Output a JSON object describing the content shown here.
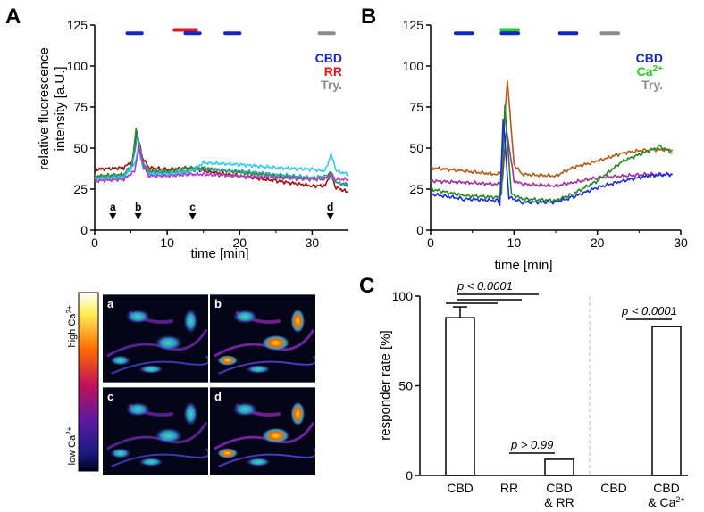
{
  "panels": {
    "a": "A",
    "b": "B",
    "c": "C"
  },
  "colors": {
    "cbd": "#1226c8",
    "rr": "#e0161a",
    "try": "#8c8c8c",
    "ca": "#22cc22",
    "t_red": "#a01010",
    "t_green": "#2e8b2e",
    "t_cyan": "#33ccee",
    "t_magenta": "#b23cc8",
    "t_teal": "#30a0a0",
    "t_blue": "#1a2fd0",
    "t_brown": "#b05a1a",
    "t_purple": "#a0309a",
    "t_dgreen": "#228822"
  },
  "chart_data": [
    {
      "id": "A",
      "type": "line",
      "xlabel": "time [min]",
      "ylabel_lines": [
        "relative fluorescence",
        "intensity [a.U.]"
      ],
      "xlim": [
        0,
        35
      ],
      "ylim": [
        0,
        125
      ],
      "xticks": [
        "0",
        "10",
        "20",
        "30"
      ],
      "xtick_values": [
        0,
        10,
        20,
        30
      ],
      "yticks": [
        "0",
        "25",
        "50",
        "75",
        "100",
        "125"
      ],
      "ytick_values": [
        0,
        25,
        50,
        75,
        100,
        125
      ],
      "legend": [
        {
          "label": "CBD",
          "color": "cbd"
        },
        {
          "label": "RR",
          "color": "rr"
        },
        {
          "label": "Try.",
          "color": "try"
        }
      ],
      "bars": [
        {
          "name": "CBD",
          "color": "cbd",
          "start": 4.5,
          "end": 6.5,
          "y": 120
        },
        {
          "name": "RR",
          "color": "rr",
          "start": 11,
          "end": 14,
          "y": 122
        },
        {
          "name": "CBD",
          "color": "cbd",
          "start": 12.5,
          "end": 14.5,
          "y": 120
        },
        {
          "name": "CBD",
          "color": "cbd",
          "start": 18,
          "end": 20,
          "y": 120
        },
        {
          "name": "Try.",
          "color": "try",
          "start": 31,
          "end": 33,
          "y": 120
        }
      ],
      "markers": [
        {
          "label": "a",
          "x": 2.5
        },
        {
          "label": "b",
          "x": 6
        },
        {
          "label": "c",
          "x": 13.5
        },
        {
          "label": "d",
          "x": 32.5
        }
      ],
      "series": [
        {
          "name": "trace 1",
          "color": "t_red",
          "points": [
            [
              0,
              37
            ],
            [
              4,
              38
            ],
            [
              5.2,
              42
            ],
            [
              5.8,
              60
            ],
            [
              6.6,
              44
            ],
            [
              7.5,
              38
            ],
            [
              10,
              37
            ],
            [
              13,
              38
            ],
            [
              15,
              36
            ],
            [
              20,
              33
            ],
            [
              25,
              30
            ],
            [
              30,
              27
            ],
            [
              31.8,
              27
            ],
            [
              32.5,
              34
            ],
            [
              33.3,
              26
            ],
            [
              35,
              23
            ]
          ]
        },
        {
          "name": "trace 2",
          "color": "t_green",
          "points": [
            [
              0,
              33
            ],
            [
              4,
              34
            ],
            [
              5.2,
              40
            ],
            [
              5.7,
              62
            ],
            [
              6.6,
              40
            ],
            [
              7.5,
              36
            ],
            [
              10,
              36
            ],
            [
              13,
              38
            ],
            [
              15,
              38
            ],
            [
              20,
              35
            ],
            [
              25,
              33
            ],
            [
              30,
              31
            ],
            [
              31.8,
              31
            ],
            [
              32.5,
              36
            ],
            [
              33.3,
              29
            ],
            [
              35,
              27
            ]
          ]
        },
        {
          "name": "trace 3",
          "color": "t_teal",
          "points": [
            [
              0,
              32
            ],
            [
              4,
              33
            ],
            [
              5.3,
              42
            ],
            [
              5.9,
              58
            ],
            [
              6.6,
              42
            ],
            [
              7.5,
              35
            ],
            [
              10,
              35
            ],
            [
              13,
              36
            ],
            [
              15,
              37
            ],
            [
              20,
              36
            ],
            [
              25,
              34
            ],
            [
              30,
              32
            ],
            [
              32,
              33
            ],
            [
              32.5,
              33
            ],
            [
              33.3,
              29
            ],
            [
              35,
              28
            ]
          ]
        },
        {
          "name": "trace 4",
          "color": "t_cyan",
          "points": [
            [
              0,
              31
            ],
            [
              4,
              32
            ],
            [
              5.5,
              40
            ],
            [
              6,
              50
            ],
            [
              6.7,
              38
            ],
            [
              7.5,
              34
            ],
            [
              10,
              34
            ],
            [
              13,
              35
            ],
            [
              15,
              41
            ],
            [
              20,
              40
            ],
            [
              25,
              38
            ],
            [
              30,
              37
            ],
            [
              31.8,
              36
            ],
            [
              32.6,
              46
            ],
            [
              33.4,
              36
            ],
            [
              35,
              34
            ]
          ]
        },
        {
          "name": "trace 5",
          "color": "t_magenta",
          "points": [
            [
              0,
              30
            ],
            [
              4,
              31
            ],
            [
              5.5,
              36
            ],
            [
              6.1,
              50
            ],
            [
              6.8,
              38
            ],
            [
              7.5,
              33
            ],
            [
              10,
              33
            ],
            [
              13,
              34
            ],
            [
              15,
              34
            ],
            [
              20,
              33
            ],
            [
              25,
              32
            ],
            [
              30,
              31
            ],
            [
              31.8,
              31
            ],
            [
              32.5,
              34
            ],
            [
              33.3,
              31
            ],
            [
              35,
              31
            ]
          ]
        }
      ]
    },
    {
      "id": "B",
      "type": "line",
      "xlabel": "time [min]",
      "ylabel_lines": [],
      "xlim": [
        0,
        30
      ],
      "ylim": [
        0,
        125
      ],
      "xticks": [
        "0",
        "10",
        "20",
        "30"
      ],
      "xtick_values": [
        0,
        10,
        20,
        30
      ],
      "yticks": [
        "0",
        "25",
        "50",
        "75",
        "100",
        "125"
      ],
      "ytick_values": [
        0,
        25,
        50,
        75,
        100,
        125
      ],
      "legend": [
        {
          "label": "CBD",
          "color": "cbd"
        },
        {
          "label": "Ca",
          "sup": "2+",
          "color": "ca"
        },
        {
          "label": "Try.",
          "color": "try"
        }
      ],
      "bars": [
        {
          "name": "CBD",
          "color": "cbd",
          "start": 3,
          "end": 5,
          "y": 120
        },
        {
          "name": "Ca2+",
          "color": "ca",
          "start": 8.5,
          "end": 10.5,
          "y": 122
        },
        {
          "name": "CBD",
          "color": "cbd",
          "start": 8.5,
          "end": 10.5,
          "y": 120
        },
        {
          "name": "CBD",
          "color": "cbd",
          "start": 15.5,
          "end": 17.5,
          "y": 120
        },
        {
          "name": "Try.",
          "color": "try",
          "start": 20.5,
          "end": 22.5,
          "y": 120
        }
      ],
      "markers": [],
      "series": [
        {
          "name": "trace 1",
          "color": "t_brown",
          "points": [
            [
              0,
              38
            ],
            [
              4,
              36
            ],
            [
              8,
              34
            ],
            [
              8.5,
              36
            ],
            [
              9.2,
              92
            ],
            [
              10,
              40
            ],
            [
              11,
              34
            ],
            [
              15,
              33
            ],
            [
              17,
              38
            ],
            [
              20,
              42
            ],
            [
              23,
              47
            ],
            [
              26,
              49
            ],
            [
              29,
              49
            ]
          ]
        },
        {
          "name": "trace 2",
          "color": "t_purple",
          "points": [
            [
              0,
              30
            ],
            [
              4,
              29
            ],
            [
              8,
              28
            ],
            [
              8.6,
              30
            ],
            [
              9.1,
              62
            ],
            [
              10,
              30
            ],
            [
              11,
              28
            ],
            [
              15,
              27
            ],
            [
              17,
              29
            ],
            [
              20,
              32
            ],
            [
              23,
              33
            ],
            [
              26,
              34
            ],
            [
              29,
              34
            ]
          ]
        },
        {
          "name": "trace 3",
          "color": "t_dgreen",
          "points": [
            [
              0,
              25
            ],
            [
              4,
              21
            ],
            [
              8,
              20
            ],
            [
              8.5,
              22
            ],
            [
              8.9,
              75
            ],
            [
              9.7,
              22
            ],
            [
              11,
              19
            ],
            [
              15,
              18
            ],
            [
              17,
              22
            ],
            [
              20,
              30
            ],
            [
              23,
              42
            ],
            [
              26,
              48
            ],
            [
              27.5,
              51
            ],
            [
              29,
              47
            ]
          ]
        },
        {
          "name": "trace 4",
          "color": "t_blue",
          "points": [
            [
              0,
              22
            ],
            [
              4,
              19
            ],
            [
              8,
              18
            ],
            [
              8.3,
              16
            ],
            [
              8.7,
              68
            ],
            [
              9.4,
              20
            ],
            [
              11,
              17
            ],
            [
              15,
              17
            ],
            [
              17,
              20
            ],
            [
              20,
              26
            ],
            [
              23,
              30
            ],
            [
              26,
              33
            ],
            [
              29,
              34
            ]
          ]
        }
      ]
    },
    {
      "id": "C",
      "type": "bar",
      "ylabel": "responder rate [%]",
      "ylim": [
        0,
        100
      ],
      "yticks": [
        "0",
        "50",
        "100"
      ],
      "ytick_values": [
        0,
        50,
        100
      ],
      "categories": [
        {
          "label": "CBD",
          "value": 88,
          "error": 6
        },
        {
          "label": "RR",
          "value": 0,
          "error": 0
        },
        {
          "label": "CBD",
          "label2": "& RR",
          "value": 9,
          "error": 0
        },
        {
          "label": "CBD",
          "value": 0,
          "error": 0
        },
        {
          "label": "CBD",
          "label2": "& Ca",
          "sup": "2+",
          "value": 83,
          "error": 0
        }
      ],
      "annotations": [
        {
          "text": "p < 0.0001",
          "group": "left-top"
        },
        {
          "text": "p > 0.99",
          "group": "left-bottom"
        },
        {
          "text": "p < 0.0001",
          "group": "right"
        }
      ]
    }
  ],
  "images": {
    "scale_high": "high Ca",
    "scale_high_sup": "2+",
    "scale_low": "low Ca",
    "scale_low_sup": "2+",
    "labels": [
      "a",
      "b",
      "c",
      "d"
    ]
  }
}
